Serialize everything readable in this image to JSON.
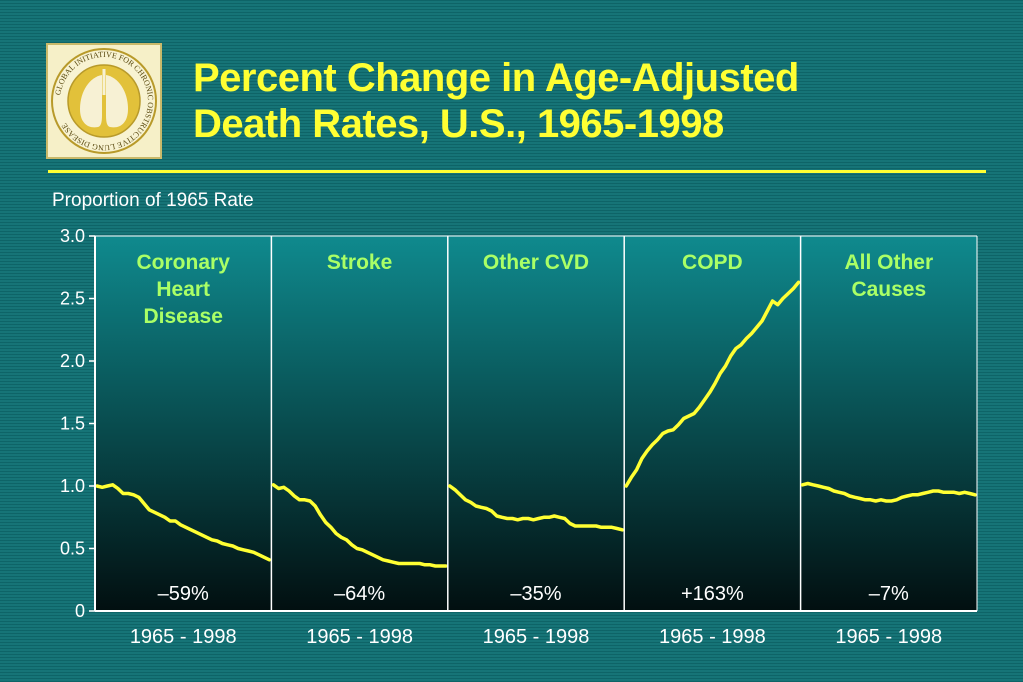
{
  "slide": {
    "title_line1": "Percent Change in Age-Adjusted",
    "title_line2": "Death Rates, U.S., 1965-1998",
    "logo_text": "GLOBAL INITIATIVE FOR CHRONIC OBSTRUCTIVE LUNG DISEASE"
  },
  "colors": {
    "title": "#ffff33",
    "line": "#ffff33",
    "panel_label": "#aaff66",
    "text": "#ffffff",
    "panel_top": "#0f8a8e",
    "panel_bottom": "#020f10"
  },
  "chart_data": {
    "type": "line",
    "ylabel": "Proportion of 1965 Rate",
    "ylim": [
      0,
      3.0
    ],
    "yticks": [
      "0",
      "0.5",
      "1.0",
      "1.5",
      "2.0",
      "2.5",
      "3.0"
    ],
    "ytick_values": [
      0,
      0.5,
      1.0,
      1.5,
      2.0,
      2.5,
      3.0
    ],
    "x": [
      1965,
      1966,
      1967,
      1968,
      1969,
      1970,
      1971,
      1972,
      1973,
      1974,
      1975,
      1976,
      1977,
      1978,
      1979,
      1980,
      1981,
      1982,
      1983,
      1984,
      1985,
      1986,
      1987,
      1988,
      1989,
      1990,
      1991,
      1992,
      1993,
      1994,
      1995,
      1996,
      1997,
      1998
    ],
    "panels": [
      {
        "name": "Coronary Heart Disease",
        "label_lines": [
          "Coronary",
          "Heart",
          "Disease"
        ],
        "xlabel": "1965 - 1998",
        "change": "–59%",
        "values": [
          1.0,
          0.99,
          1.0,
          1.01,
          0.98,
          0.94,
          0.94,
          0.93,
          0.91,
          0.86,
          0.81,
          0.79,
          0.77,
          0.75,
          0.72,
          0.72,
          0.69,
          0.67,
          0.65,
          0.63,
          0.61,
          0.59,
          0.57,
          0.56,
          0.54,
          0.53,
          0.52,
          0.5,
          0.49,
          0.48,
          0.47,
          0.45,
          0.43,
          0.41
        ]
      },
      {
        "name": "Stroke",
        "label_lines": [
          "Stroke"
        ],
        "xlabel": "1965 - 1998",
        "change": "–64%",
        "values": [
          1.01,
          0.98,
          0.99,
          0.96,
          0.92,
          0.89,
          0.89,
          0.88,
          0.84,
          0.77,
          0.71,
          0.67,
          0.62,
          0.59,
          0.57,
          0.53,
          0.5,
          0.49,
          0.47,
          0.45,
          0.43,
          0.41,
          0.4,
          0.39,
          0.38,
          0.38,
          0.38,
          0.38,
          0.38,
          0.37,
          0.37,
          0.36,
          0.36,
          0.36
        ]
      },
      {
        "name": "Other CVD",
        "label_lines": [
          "Other CVD"
        ],
        "xlabel": "1965 - 1998",
        "change": "–35%",
        "values": [
          1.0,
          0.97,
          0.93,
          0.89,
          0.87,
          0.84,
          0.83,
          0.82,
          0.8,
          0.76,
          0.75,
          0.74,
          0.74,
          0.73,
          0.74,
          0.74,
          0.73,
          0.74,
          0.75,
          0.75,
          0.76,
          0.75,
          0.74,
          0.7,
          0.68,
          0.68,
          0.68,
          0.68,
          0.68,
          0.67,
          0.67,
          0.67,
          0.66,
          0.65
        ]
      },
      {
        "name": "COPD",
        "label_lines": [
          "COPD"
        ],
        "xlabel": "1965 - 1998",
        "change": "+163%",
        "values": [
          1.0,
          1.07,
          1.13,
          1.22,
          1.28,
          1.33,
          1.37,
          1.42,
          1.44,
          1.45,
          1.49,
          1.54,
          1.56,
          1.58,
          1.63,
          1.69,
          1.75,
          1.82,
          1.9,
          1.96,
          2.04,
          2.1,
          2.13,
          2.18,
          2.22,
          2.27,
          2.32,
          2.4,
          2.48,
          2.45,
          2.5,
          2.54,
          2.58,
          2.63
        ]
      },
      {
        "name": "All Other Causes",
        "label_lines": [
          "All Other",
          "Causes"
        ],
        "xlabel": "1965 - 1998",
        "change": "–7%",
        "values": [
          1.01,
          1.02,
          1.01,
          1.0,
          0.99,
          0.98,
          0.96,
          0.95,
          0.94,
          0.92,
          0.91,
          0.9,
          0.89,
          0.89,
          0.88,
          0.89,
          0.88,
          0.88,
          0.89,
          0.91,
          0.92,
          0.93,
          0.93,
          0.94,
          0.95,
          0.96,
          0.96,
          0.95,
          0.95,
          0.95,
          0.94,
          0.95,
          0.94,
          0.93
        ]
      }
    ]
  }
}
